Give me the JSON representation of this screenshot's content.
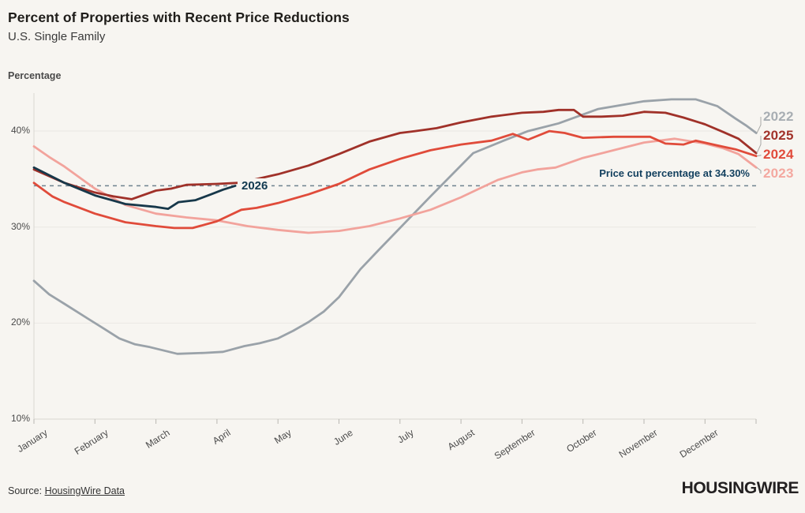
{
  "header": {
    "title": "Percent of Properties with Recent Price Reductions",
    "subtitle": "U.S. Single Family"
  },
  "chart": {
    "y_axis_label": "Percentage",
    "y_ticks": [
      {
        "value": 40,
        "label": "40%"
      },
      {
        "value": 30,
        "label": "30%"
      },
      {
        "value": 20,
        "label": "20%"
      },
      {
        "value": 10,
        "label": "10%"
      }
    ],
    "months": [
      "January",
      "February",
      "March",
      "April",
      "May",
      "June",
      "July",
      "August",
      "September",
      "October",
      "November",
      "December"
    ],
    "annotation": {
      "text": "Price cut percentage at 34.30%",
      "value": 34.3,
      "text_color": "#113f5e",
      "line_color": "#6e8290"
    },
    "inline_series_label": {
      "text": "2026",
      "color": "#123a50"
    },
    "end_labels": [
      "2022",
      "2025",
      "2024",
      "2023"
    ],
    "leader_color": "#a9a9a6",
    "colors": {
      "background": "#f7f5f1",
      "gridline": "#eae8e3",
      "axis": "#d8d6d1",
      "tick": "#b9b7b2"
    }
  },
  "chart_data": {
    "type": "line",
    "title": "Percent of Properties with Recent Price Reductions",
    "subtitle": "U.S. Single Family",
    "xlabel": "",
    "ylabel": "Percentage",
    "ylim": [
      10,
      45
    ],
    "x_unit": "month, fractional (0 = Jan 1, 11.84 = Dec 31)",
    "x_categories": [
      "January",
      "February",
      "March",
      "April",
      "May",
      "June",
      "July",
      "August",
      "September",
      "October",
      "November",
      "December"
    ],
    "grid": "horizontal",
    "legend_position": "right-end-labels",
    "annotation_line": {
      "label": "Price cut percentage at 34.30%",
      "value": 34.3
    },
    "series": [
      {
        "name": "2022",
        "color": "#9aa2a9",
        "label_color": "#a8aeb3",
        "points": [
          [
            0,
            24.4
          ],
          [
            0.25,
            23.0
          ],
          [
            0.5,
            22.0
          ],
          [
            0.9,
            20.4
          ],
          [
            1.15,
            19.4
          ],
          [
            1.4,
            18.4
          ],
          [
            1.65,
            17.8
          ],
          [
            1.9,
            17.5
          ],
          [
            2.35,
            16.8
          ],
          [
            2.8,
            16.9
          ],
          [
            3.1,
            17.0
          ],
          [
            3.45,
            17.6
          ],
          [
            3.7,
            17.9
          ],
          [
            4,
            18.4
          ],
          [
            4.25,
            19.2
          ],
          [
            4.5,
            20.1
          ],
          [
            4.75,
            21.2
          ],
          [
            5,
            22.7
          ],
          [
            5.35,
            25.6
          ],
          [
            5.65,
            27.6
          ],
          [
            6,
            29.9
          ],
          [
            6.5,
            33.2
          ],
          [
            7.2,
            37.7
          ],
          [
            7.7,
            39.0
          ],
          [
            8.1,
            40.0
          ],
          [
            8.6,
            40.8
          ],
          [
            9.25,
            42.3
          ],
          [
            10,
            43.1
          ],
          [
            10.45,
            43.3
          ],
          [
            10.85,
            43.3
          ],
          [
            11.2,
            42.6
          ],
          [
            11.5,
            41.3
          ],
          [
            11.67,
            40.6
          ],
          [
            11.84,
            39.8
          ]
        ]
      },
      {
        "name": "2023",
        "color": "#f2a39c",
        "label_color": "#f4a8a0",
        "points": [
          [
            0,
            38.4
          ],
          [
            0.25,
            37.3
          ],
          [
            0.5,
            36.3
          ],
          [
            1,
            34.0
          ],
          [
            1.5,
            32.3
          ],
          [
            2,
            31.4
          ],
          [
            2.5,
            31.0
          ],
          [
            3,
            30.7
          ],
          [
            3.5,
            30.1
          ],
          [
            4,
            29.7
          ],
          [
            4.5,
            29.4
          ],
          [
            5,
            29.6
          ],
          [
            5.5,
            30.1
          ],
          [
            6,
            30.9
          ],
          [
            6.5,
            31.8
          ],
          [
            7,
            33.1
          ],
          [
            7.3,
            34.0
          ],
          [
            7.6,
            34.9
          ],
          [
            8,
            35.7
          ],
          [
            8.25,
            36.0
          ],
          [
            8.55,
            36.2
          ],
          [
            9,
            37.2
          ],
          [
            9.5,
            38.0
          ],
          [
            10,
            38.8
          ],
          [
            10.5,
            39.2
          ],
          [
            11,
            38.7
          ],
          [
            11.3,
            38.2
          ],
          [
            11.55,
            37.6
          ],
          [
            11.84,
            36.2
          ]
        ]
      },
      {
        "name": "2024",
        "color": "#e04b3a",
        "label_color": "#e14b3b",
        "points": [
          [
            0,
            34.6
          ],
          [
            0.3,
            33.2
          ],
          [
            0.5,
            32.6
          ],
          [
            1,
            31.4
          ],
          [
            1.5,
            30.5
          ],
          [
            2,
            30.1
          ],
          [
            2.3,
            29.9
          ],
          [
            2.6,
            29.9
          ],
          [
            3,
            30.6
          ],
          [
            3.4,
            31.8
          ],
          [
            3.65,
            32.0
          ],
          [
            4,
            32.5
          ],
          [
            4.5,
            33.4
          ],
          [
            5,
            34.5
          ],
          [
            5.5,
            36.0
          ],
          [
            6,
            37.1
          ],
          [
            6.5,
            38.0
          ],
          [
            7,
            38.6
          ],
          [
            7.5,
            39.0
          ],
          [
            7.85,
            39.7
          ],
          [
            8.1,
            39.1
          ],
          [
            8.45,
            40.0
          ],
          [
            8.7,
            39.8
          ],
          [
            9,
            39.3
          ],
          [
            9.5,
            39.4
          ],
          [
            10.1,
            39.4
          ],
          [
            10.35,
            38.7
          ],
          [
            10.65,
            38.6
          ],
          [
            10.85,
            39.0
          ],
          [
            11.2,
            38.5
          ],
          [
            11.5,
            38.1
          ],
          [
            11.84,
            37.4
          ]
        ]
      },
      {
        "name": "2025",
        "color": "#a03129",
        "label_color": "#a2332b",
        "points": [
          [
            0,
            36.0
          ],
          [
            0.5,
            34.6
          ],
          [
            1,
            33.6
          ],
          [
            1.3,
            33.2
          ],
          [
            1.6,
            32.9
          ],
          [
            2,
            33.8
          ],
          [
            2.25,
            34.0
          ],
          [
            2.5,
            34.4
          ],
          [
            3,
            34.5
          ],
          [
            3.35,
            34.6
          ],
          [
            3.65,
            35.0
          ],
          [
            4,
            35.5
          ],
          [
            4.5,
            36.4
          ],
          [
            5,
            37.6
          ],
          [
            5.5,
            38.9
          ],
          [
            6,
            39.8
          ],
          [
            6.25,
            40.0
          ],
          [
            6.6,
            40.3
          ],
          [
            7,
            40.9
          ],
          [
            7.5,
            41.5
          ],
          [
            8,
            41.9
          ],
          [
            8.35,
            42.0
          ],
          [
            8.6,
            42.2
          ],
          [
            8.85,
            42.2
          ],
          [
            9,
            41.5
          ],
          [
            9.3,
            41.5
          ],
          [
            9.65,
            41.6
          ],
          [
            10,
            42.0
          ],
          [
            10.35,
            41.9
          ],
          [
            10.65,
            41.4
          ],
          [
            11,
            40.7
          ],
          [
            11.3,
            39.9
          ],
          [
            11.55,
            39.2
          ],
          [
            11.84,
            37.7
          ]
        ]
      },
      {
        "name": "2026",
        "color": "#17384a",
        "label_color": "#123a50",
        "points": [
          [
            0,
            36.2
          ],
          [
            0.5,
            34.6
          ],
          [
            1,
            33.3
          ],
          [
            1.5,
            32.4
          ],
          [
            2,
            32.1
          ],
          [
            2.2,
            31.9
          ],
          [
            2.37,
            32.6
          ],
          [
            2.65,
            32.8
          ],
          [
            2.9,
            33.4
          ],
          [
            3.1,
            33.9
          ],
          [
            3.3,
            34.3
          ]
        ]
      }
    ]
  },
  "footer": {
    "source_prefix": "Source: ",
    "source_link_text": "HousingWire Data",
    "logo_text": "HOUSINGWIRE"
  }
}
